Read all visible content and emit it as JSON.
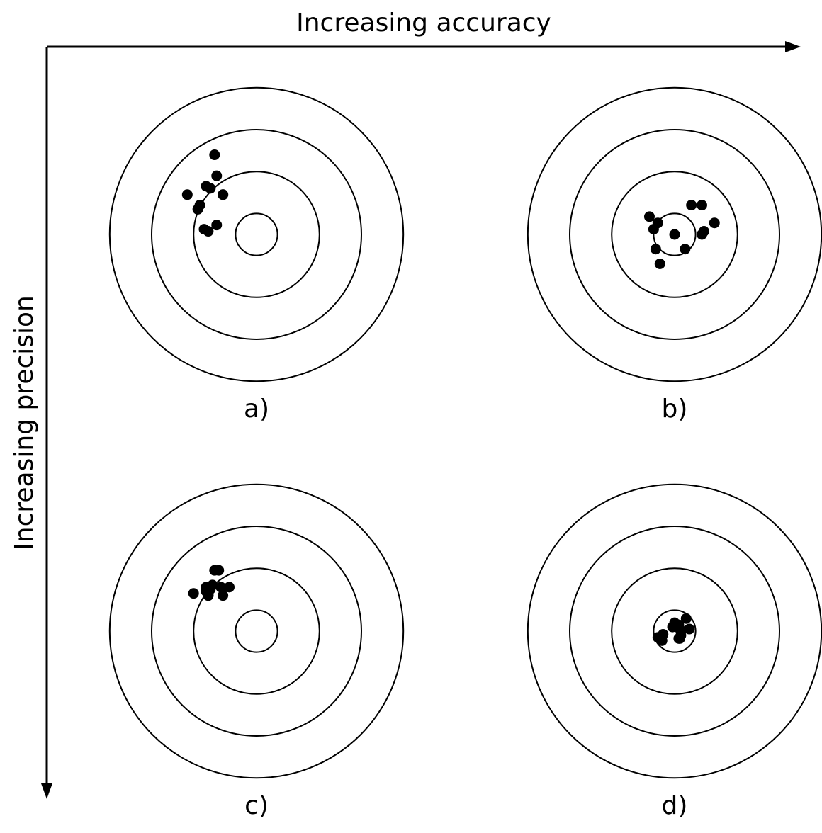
{
  "axes": {
    "x_label": "Increasing accuracy",
    "y_label": "Increasing precision"
  },
  "rings": [
    1,
    3,
    5,
    7
  ],
  "panels": [
    {
      "id": "a",
      "label": "a)",
      "hits": [
        [
          -2,
          3.8
        ],
        [
          -1.9,
          2.8
        ],
        [
          -2.4,
          2.3
        ],
        [
          -2.2,
          2.2
        ],
        [
          -3.3,
          1.9
        ],
        [
          -1.6,
          1.9
        ],
        [
          -1.6,
          1.9
        ],
        [
          -2.7,
          1.4
        ],
        [
          -2.8,
          1.2
        ],
        [
          -1.9,
          0.45
        ],
        [
          -2.5,
          0.25
        ],
        [
          -2.3,
          0.15
        ]
      ]
    },
    {
      "id": "b",
      "label": "b)",
      "hits": [
        [
          0,
          0
        ],
        [
          0.8,
          1.4
        ],
        [
          1.3,
          1.4
        ],
        [
          -1.2,
          0.85
        ],
        [
          -0.8,
          0.55
        ],
        [
          -1,
          0.25
        ],
        [
          1.9,
          0.55
        ],
        [
          1.4,
          0.15
        ],
        [
          1.3,
          0
        ],
        [
          -0.9,
          -0.7
        ],
        [
          0.5,
          -0.7
        ],
        [
          -0.7,
          -1.4
        ]
      ]
    },
    {
      "id": "c",
      "label": "c)",
      "hits": [
        [
          -2,
          2.9
        ],
        [
          -1.8,
          2.9
        ],
        [
          -2.1,
          2.2
        ],
        [
          -2.4,
          2.1
        ],
        [
          -2.2,
          2
        ],
        [
          -1.7,
          2.1
        ],
        [
          -1.3,
          2.1
        ],
        [
          -2.4,
          1.9
        ],
        [
          -3,
          1.8
        ],
        [
          -2.3,
          1.7
        ],
        [
          -2.3,
          1.7
        ],
        [
          -1.6,
          1.7
        ]
      ]
    },
    {
      "id": "d",
      "label": "d)",
      "hits": [
        [
          0,
          0.4
        ],
        [
          0.55,
          0.6
        ],
        [
          0.2,
          0.3
        ],
        [
          0.25,
          0.1
        ],
        [
          -0.1,
          0.2
        ],
        [
          0.7,
          0.1
        ],
        [
          -0.55,
          -0.15
        ],
        [
          -0.8,
          -0.3
        ],
        [
          -0.6,
          -0.45
        ],
        [
          0.3,
          -0.2
        ],
        [
          0.25,
          -0.35
        ],
        [
          0.2,
          -0.35
        ]
      ]
    }
  ]
}
